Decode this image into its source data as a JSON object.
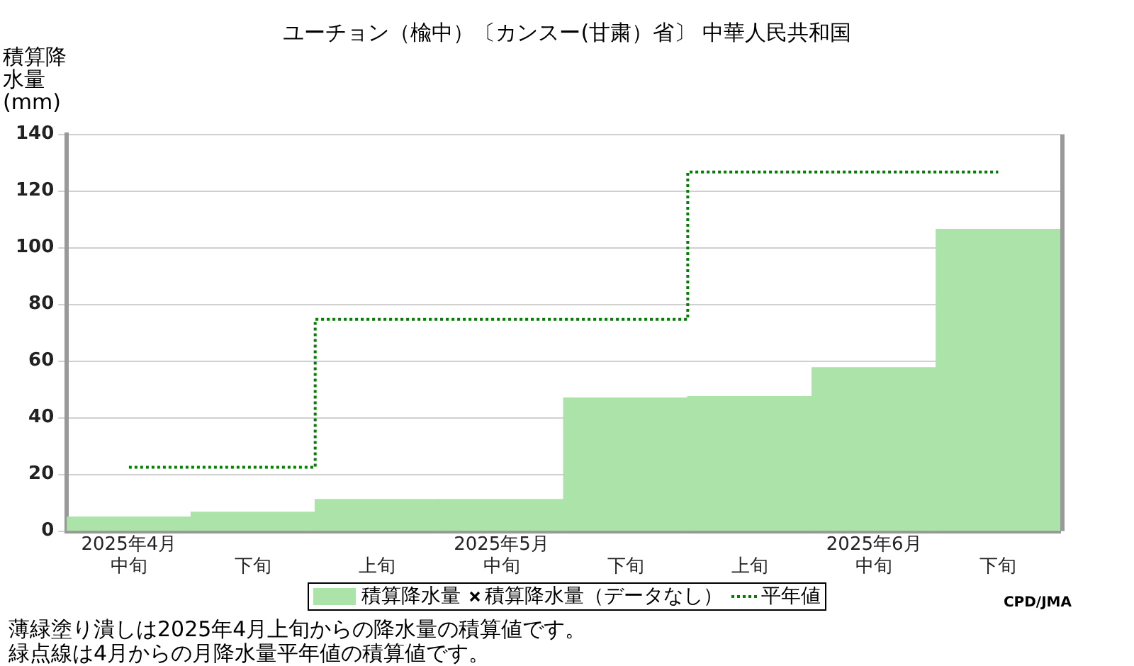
{
  "chart_data": {
    "type": "bar",
    "title": "ユーチョン（楡中）〔カンスー(甘粛）省〕 中華人民共和国",
    "ylabel": "積算降水量(mm)",
    "categories": [
      "2025年4月中旬",
      "下旬",
      "上旬",
      "2025年5月中旬",
      "下旬",
      "上旬",
      "2025年6月中旬",
      "下旬"
    ],
    "series": [
      {
        "name": "積算降水量",
        "color": "#abe3a9",
        "values": [
          5,
          6.7,
          11.2,
          11.2,
          47,
          47.5,
          57.7,
          106.5
        ]
      },
      {
        "name": "積算降水量（データなし）",
        "type": "scatter",
        "marker": "cross",
        "color": "#000000",
        "values": [
          null,
          null,
          null,
          null,
          null,
          null,
          null,
          null
        ]
      },
      {
        "name": "平年値",
        "type": "step",
        "color": "#008000",
        "line_style": "dotted",
        "values": [
          22.5,
          22.5,
          74.7,
          74.7,
          74.7,
          126.7,
          126.7,
          126.7
        ]
      }
    ],
    "ylim": [
      0,
      140
    ],
    "yticks": [
      0,
      20,
      40,
      60,
      80,
      100,
      120,
      140
    ],
    "grid": "y",
    "legend": "bottom",
    "annotations": [
      "CPD/JMA",
      "薄緑塗り潰しは2025年4月上旬からの降水量の積算値です。",
      "緑点線は4月からの月降水量平年値の積算値です。"
    ]
  }
}
